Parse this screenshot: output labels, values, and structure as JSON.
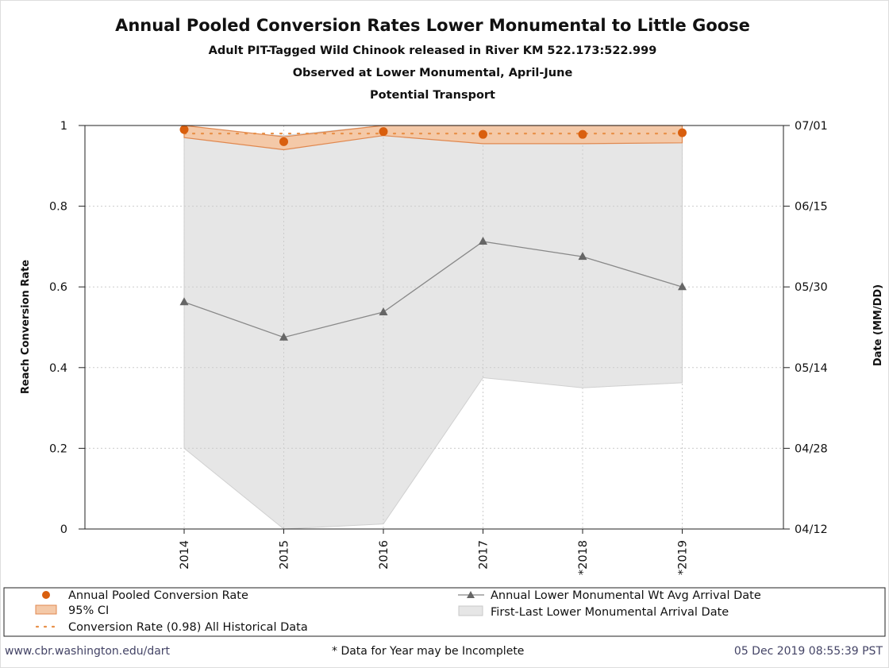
{
  "title": "Annual Pooled Conversion Rates Lower Monumental to Little Goose",
  "subtitles": [
    "Adult PIT-Tagged Wild Chinook released in River KM 522.173:522.999",
    "Observed at Lower Monumental, April-June",
    "Potential Transport"
  ],
  "footer": {
    "left": "www.cbr.washington.edu/dart",
    "center": "* Data for Year may be Incomplete",
    "right": "05 Dec 2019 08:55:39 PST"
  },
  "colors": {
    "rate": "#d95f0e",
    "ci_fill": "#f4c9a8",
    "ci_stroke": "#e0884f",
    "arrival": "#777777",
    "range_fill": "#e6e6e6",
    "grid": "#cccccc"
  },
  "chart_data": {
    "type": "line",
    "categories": [
      "2014",
      "2015",
      "2016",
      "2017",
      "*2018",
      "*2019"
    ],
    "ylabel": "Reach Conversion Rate",
    "ylim": [
      0,
      1
    ],
    "yticks": [
      "0",
      "0.2",
      "0.4",
      "0.6",
      "0.8",
      "1"
    ],
    "y2label": "Date (MM/DD)",
    "y2ticks": [
      "04/12",
      "04/28",
      "05/14",
      "05/30",
      "06/15",
      "07/01"
    ],
    "grid": true,
    "legend_position": "bottom",
    "series": [
      {
        "name": "Annual Pooled Conversion Rate",
        "kind": "points",
        "values": [
          0.99,
          0.96,
          0.985,
          0.978,
          0.978,
          0.982
        ]
      },
      {
        "name": "95% CI",
        "kind": "band",
        "lower": [
          0.97,
          0.94,
          0.975,
          0.955,
          0.955,
          0.957
        ],
        "upper": [
          1.0,
          0.972,
          1.0,
          1.0,
          1.0,
          1.0
        ]
      },
      {
        "name": "Conversion Rate (0.98) All Historical Data",
        "kind": "hline",
        "value": 0.98
      },
      {
        "name": "Annual Lower Monumental Wt Avg Arrival Date",
        "kind": "line",
        "values": [
          "05/27",
          "05/20",
          "05/25",
          "06/08",
          "06/05",
          "05/30"
        ]
      },
      {
        "name": "First-Last Lower Monumental Arrival Date",
        "kind": "band",
        "first": [
          "04/28",
          "04/12",
          "04/13",
          "05/12",
          "05/10",
          "05/11"
        ],
        "last": [
          "06/30",
          "06/29",
          "07/01",
          "07/01",
          "07/01",
          "07/01"
        ]
      }
    ]
  }
}
